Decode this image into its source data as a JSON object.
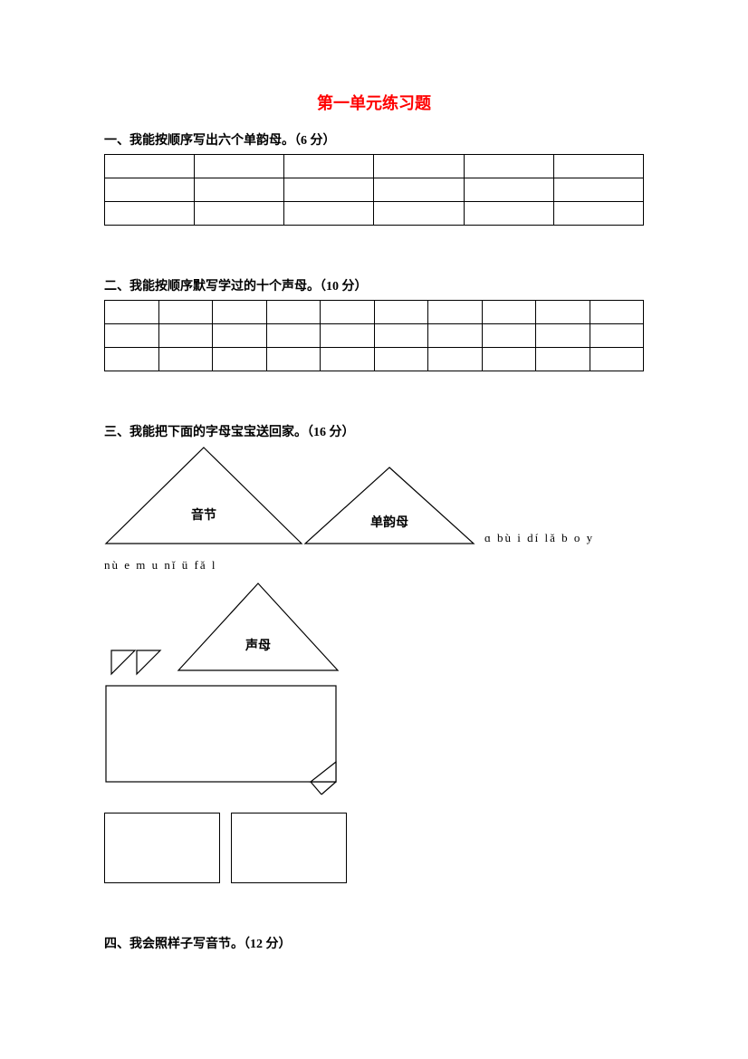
{
  "title": {
    "text": "第一单元练习题",
    "color": "#ff0000",
    "fontsize": 18
  },
  "section1": {
    "heading": "一、我能按顺序写出六个单韵母。（6 分）",
    "rows": 3,
    "cols": 6
  },
  "section2": {
    "heading": "二、我能按顺序默写学过的十个声母。（10 分）",
    "rows": 3,
    "cols": 10
  },
  "section3": {
    "heading": "三、我能把下面的字母宝宝送回家。（16 分）",
    "triangle1_label": "音节",
    "triangle2_label": "单韵母",
    "triangle3_label": "声母",
    "letters_tail": "ɑ  bù  i  dí  lǎ  b  o  y",
    "letters_line2": "nù  e  m  u  nǐ  ü  fǎ  l",
    "stroke": "#000000",
    "stroke_width": 1.2
  },
  "section4": {
    "heading": "四、我会照样子写音节。（12 分）"
  }
}
